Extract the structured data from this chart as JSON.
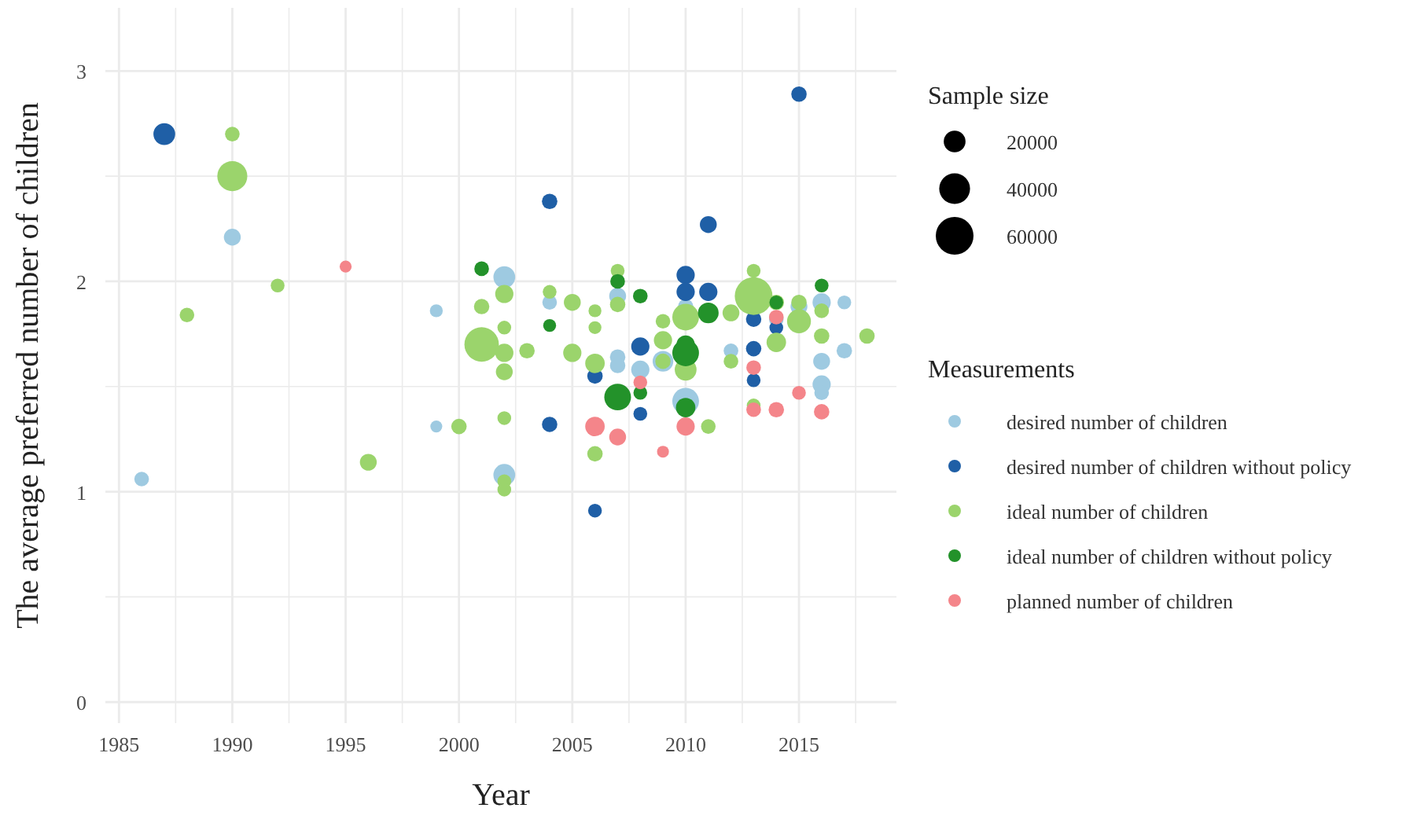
{
  "chart_data": {
    "type": "bubble",
    "xlabel": "Year",
    "ylabel": "The average preferred number of children",
    "legend_title": "Measurements",
    "annotations": [
      "Sample size"
    ],
    "size_legend": [
      20000,
      40000,
      60000
    ],
    "marker": "circle",
    "grid": true,
    "legend": "right",
    "xlim": [
      1984.4,
      2019.3
    ],
    "ylim": [
      -0.1,
      3.3
    ],
    "xticks": [
      {
        "value": 1985,
        "label": "1985"
      },
      {
        "value": 1987.5,
        "label": null
      },
      {
        "value": 1990,
        "label": "1990"
      },
      {
        "value": 1992.5,
        "label": null
      },
      {
        "value": 1995,
        "label": "1995"
      },
      {
        "value": 1997.5,
        "label": null
      },
      {
        "value": 2000,
        "label": "2000"
      },
      {
        "value": 2002.5,
        "label": null
      },
      {
        "value": 2005,
        "label": "2005"
      },
      {
        "value": 2007.5,
        "label": null
      },
      {
        "value": 2010,
        "label": "2010"
      },
      {
        "value": 2012.5,
        "label": null
      },
      {
        "value": 2015,
        "label": "2015"
      },
      {
        "value": 2017.5,
        "label": null
      }
    ],
    "yticks": [
      0,
      {
        "value": 0.5,
        "label": null
      },
      1,
      {
        "value": 1.5,
        "label": null
      },
      2,
      {
        "value": 2.5,
        "label": null
      },
      3
    ],
    "series": [
      {
        "name": "desired number of children",
        "color": "#9ecae1",
        "x": [
          1986,
          1990,
          1999,
          1999,
          2002,
          2002,
          2004,
          2007,
          2007,
          2007,
          2008,
          2009,
          2010,
          2010,
          2012,
          2014,
          2015,
          2016,
          2016,
          2016,
          2016,
          2017,
          2017
        ],
        "values": [
          1.06,
          2.21,
          1.86,
          1.31,
          2.02,
          1.08,
          1.9,
          1.93,
          1.64,
          1.6,
          1.58,
          1.62,
          1.88,
          1.43,
          1.67,
          1.82,
          1.88,
          1.9,
          1.62,
          1.51,
          1.47,
          1.9,
          1.67
        ],
        "sizes": [
          9000,
          12000,
          7000,
          6000,
          20000,
          20000,
          9000,
          12000,
          10000,
          10000,
          14000,
          18000,
          10000,
          30000,
          9000,
          9000,
          12000,
          14000,
          12000,
          14000,
          9000,
          8000,
          10000
        ]
      },
      {
        "name": "desired number of children without policy",
        "color": "#1f5fa6",
        "x": [
          1987,
          2004,
          2004,
          2006,
          2006,
          2008,
          2008,
          2010,
          2010,
          2011,
          2011,
          2013,
          2013,
          2013,
          2014,
          2015
        ],
        "values": [
          2.7,
          2.38,
          1.32,
          1.55,
          0.91,
          1.69,
          1.37,
          2.03,
          1.95,
          2.27,
          1.95,
          1.82,
          1.68,
          1.53,
          1.78,
          2.89
        ],
        "sizes": [
          20000,
          10000,
          10000,
          10000,
          8000,
          14000,
          8000,
          14000,
          14000,
          12000,
          14000,
          10000,
          10000,
          8000,
          8000,
          10000
        ]
      },
      {
        "name": "ideal number of children",
        "color": "#9bd46c",
        "x": [
          1988,
          1990,
          1990,
          1992,
          1996,
          2000,
          2001,
          2001,
          2002,
          2002,
          2002,
          2002,
          2002,
          2002,
          2002,
          2003,
          2004,
          2005,
          2005,
          2006,
          2006,
          2006,
          2006,
          2007,
          2007,
          2009,
          2009,
          2009,
          2010,
          2010,
          2011,
          2012,
          2012,
          2013,
          2013,
          2013,
          2014,
          2014,
          2015,
          2015,
          2016,
          2016,
          2018
        ],
        "values": [
          1.84,
          2.7,
          2.5,
          1.98,
          1.14,
          1.31,
          1.88,
          1.7,
          1.94,
          1.78,
          1.66,
          1.57,
          1.35,
          1.05,
          1.01,
          1.67,
          1.95,
          1.9,
          1.66,
          1.86,
          1.78,
          1.61,
          1.18,
          2.05,
          1.89,
          1.81,
          1.72,
          1.62,
          1.83,
          1.58,
          1.31,
          1.85,
          1.62,
          2.05,
          1.93,
          1.41,
          1.9,
          1.71,
          1.9,
          1.81,
          1.86,
          1.74,
          1.74
        ],
        "sizes": [
          9000,
          9000,
          38000,
          8000,
          12000,
          10000,
          10000,
          50000,
          14000,
          8000,
          14000,
          12000,
          8000,
          8000,
          8000,
          10000,
          8000,
          12000,
          14000,
          7000,
          7000,
          16000,
          10000,
          8000,
          10000,
          9000,
          14000,
          10000,
          30000,
          20000,
          9000,
          12000,
          9000,
          8000,
          60000,
          8000,
          10000,
          16000,
          10000,
          24000,
          9000,
          10000,
          10000
        ]
      },
      {
        "name": "ideal number of children without policy",
        "color": "#23922a",
        "x": [
          2001,
          2004,
          2007,
          2007,
          2008,
          2008,
          2010,
          2010,
          2010,
          2011,
          2014,
          2016
        ],
        "values": [
          2.06,
          1.79,
          2.0,
          1.45,
          1.93,
          1.47,
          1.7,
          1.66,
          1.4,
          1.85,
          1.9,
          1.98
        ],
        "sizes": [
          9000,
          7000,
          9000,
          30000,
          9000,
          8000,
          14000,
          30000,
          16000,
          18000,
          8000,
          8000
        ]
      },
      {
        "name": "planned number of children",
        "color": "#f4858a",
        "x": [
          1995,
          2006,
          2007,
          2008,
          2009,
          2010,
          2013,
          2013,
          2014,
          2014,
          2015,
          2016
        ],
        "values": [
          2.07,
          1.31,
          1.26,
          1.52,
          1.19,
          1.31,
          1.59,
          1.39,
          1.83,
          1.39,
          1.47,
          1.38
        ],
        "sizes": [
          6000,
          16000,
          12000,
          8000,
          6000,
          14000,
          9000,
          9000,
          9000,
          10000,
          8000,
          10000
        ]
      }
    ]
  }
}
